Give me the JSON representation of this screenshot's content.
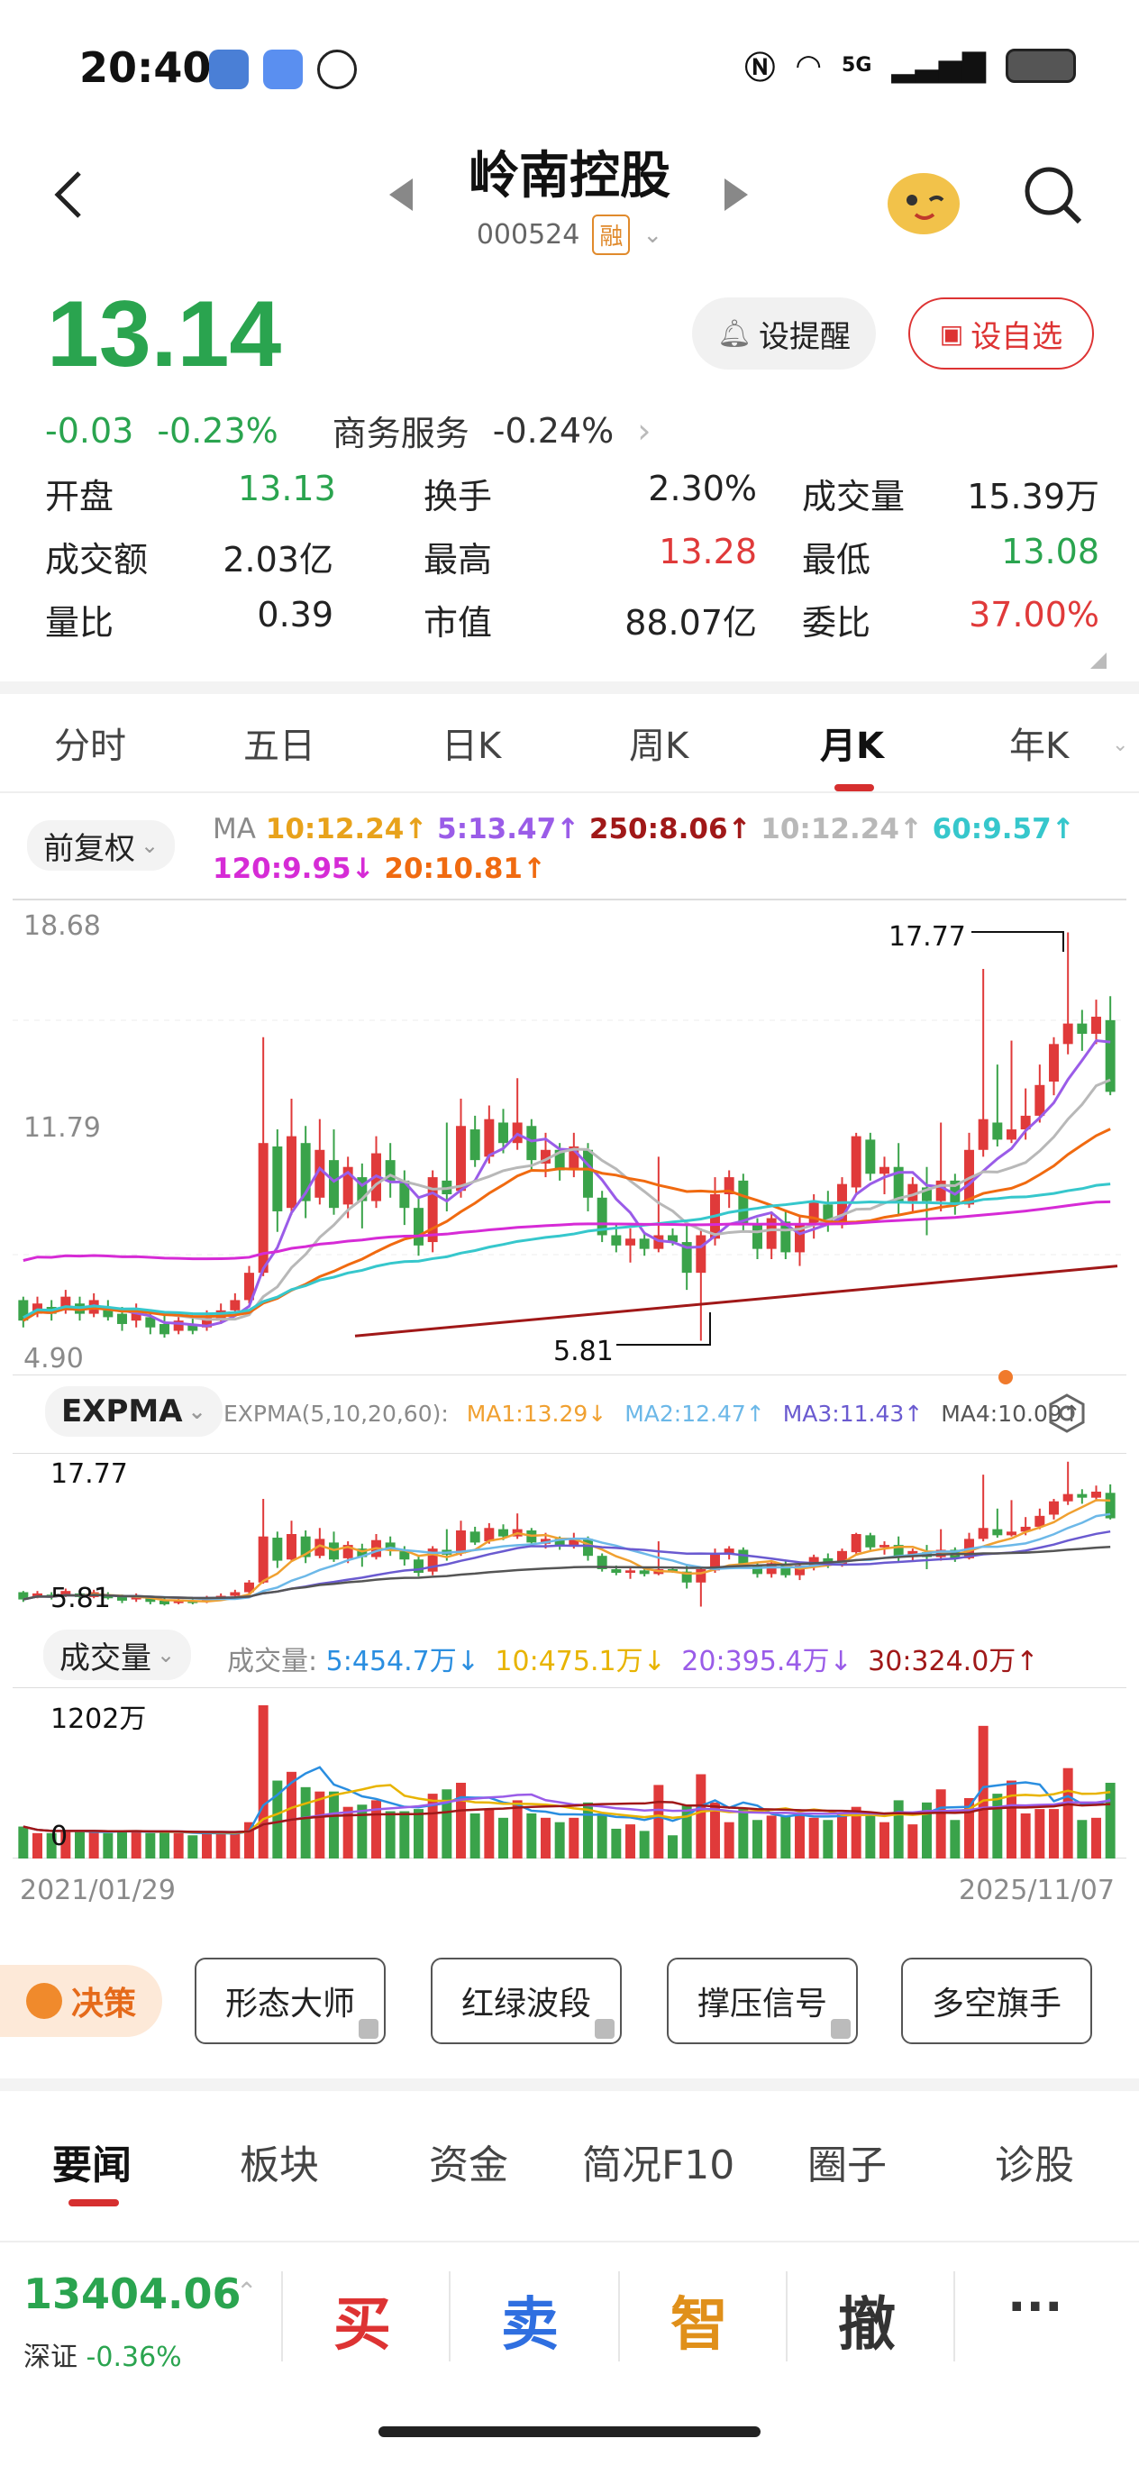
{
  "status_bar": {
    "time": "20:40",
    "network": "5G",
    "icons": [
      "app-icon-1",
      "message-icon",
      "hand-icon",
      "nfc-icon",
      "wifi-icon",
      "signal-icon",
      "battery-icon"
    ]
  },
  "header": {
    "stock_name": "岭南控股",
    "stock_code": "000524",
    "margin_badge": "融"
  },
  "quote": {
    "price": "13.14",
    "change": "-0.03",
    "change_pct": "-0.23%",
    "sector": "商务服务",
    "sector_pct": "-0.24%",
    "remind_label": "设提醒",
    "watch_label": "设自选"
  },
  "stats": [
    {
      "label": "开盘",
      "value": "13.13",
      "color": "green"
    },
    {
      "label": "换手",
      "value": "2.30%",
      "color": "black"
    },
    {
      "label": "成交量",
      "value": "15.39万",
      "color": "black"
    },
    {
      "label": "成交额",
      "value": "2.03亿",
      "color": "black"
    },
    {
      "label": "最高",
      "value": "13.28",
      "color": "red"
    },
    {
      "label": "最低",
      "value": "13.08",
      "color": "green"
    },
    {
      "label": "量比",
      "value": "0.39",
      "color": "black"
    },
    {
      "label": "市值",
      "value": "88.07亿",
      "color": "black"
    },
    {
      "label": "委比",
      "value": "37.00%",
      "color": "red"
    }
  ],
  "period_tabs": [
    "分时",
    "五日",
    "日K",
    "周K",
    "月K",
    "年K"
  ],
  "active_period": "月K",
  "main_chart": {
    "adjust_label": "前复权",
    "ma_label": "MA",
    "ma_items": [
      {
        "text": "10:12.24↑",
        "color": "#e8a21b"
      },
      {
        "text": "5:13.47↑",
        "color": "#9a5ce8"
      },
      {
        "text": "250:8.06↑",
        "color": "#a01818"
      },
      {
        "text": "10:12.24↑",
        "color": "#b8b8b8"
      },
      {
        "text": "60:9.57↑",
        "color": "#36c7cc"
      },
      {
        "text": "120:9.95↓",
        "color": "#d62bd6"
      },
      {
        "text": "20:10.81↑",
        "color": "#f06a10"
      }
    ],
    "y_top": "18.68",
    "y_mid": "11.79",
    "y_bottom": "4.90",
    "high_mark": "17.77",
    "low_mark": "5.81"
  },
  "expma_chart": {
    "name": "EXPMA",
    "params": "EXPMA(5,10,20,60):",
    "items": [
      {
        "text": "MA1:13.29↓",
        "color": "#f0a030"
      },
      {
        "text": "MA2:12.47↑",
        "color": "#6cb8e8"
      },
      {
        "text": "MA3:11.43↑",
        "color": "#6a5ad0"
      },
      {
        "text": "MA4:10.09↑",
        "color": "#555555"
      }
    ],
    "y_top": "17.77",
    "y_bottom": "5.81"
  },
  "volume_chart": {
    "name": "成交量",
    "prefix": "成交量:",
    "items": [
      {
        "text": "5:454.7万↓",
        "color": "#2a8ee0"
      },
      {
        "text": "10:475.1万↓",
        "color": "#e8b400"
      },
      {
        "text": "20:395.4万↓",
        "color": "#9a5ce8"
      },
      {
        "text": "30:324.0万↑",
        "color": "#a01818"
      }
    ],
    "y_top": "1202万",
    "y_bottom": "0",
    "date_start": "2021/01/29",
    "date_end": "2025/11/07"
  },
  "strategy": {
    "badge": "决策",
    "buttons": [
      "形态大师",
      "红绿波段",
      "撑压信号",
      "多空旗手"
    ]
  },
  "news_tabs": [
    "要闻",
    "板块",
    "资金",
    "简况F10",
    "圈子",
    "诊股"
  ],
  "bottom": {
    "index_value": "13404.06",
    "index_name": "深证",
    "index_pct": "-0.36%",
    "buy": "买",
    "sell": "卖",
    "smart": "智",
    "cancel": "撤",
    "more": "···"
  },
  "chart_data": {
    "type": "candlestick",
    "candles": [
      [
        7.0,
        6.4,
        7.1,
        6.2
      ],
      [
        6.6,
        6.9,
        7.1,
        6.5
      ],
      [
        6.8,
        6.6,
        7.0,
        6.4
      ],
      [
        6.7,
        7.1,
        7.3,
        6.6
      ],
      [
        6.9,
        6.6,
        7.1,
        6.4
      ],
      [
        6.6,
        7.0,
        7.2,
        6.5
      ],
      [
        6.8,
        6.5,
        7.0,
        6.4
      ],
      [
        6.6,
        6.3,
        6.8,
        6.1
      ],
      [
        6.4,
        6.7,
        6.9,
        6.2
      ],
      [
        6.5,
        6.2,
        6.6,
        6.0
      ],
      [
        6.3,
        6.0,
        6.6,
        5.9
      ],
      [
        6.1,
        6.4,
        6.6,
        6.0
      ],
      [
        6.3,
        6.1,
        6.5,
        6.0
      ],
      [
        6.2,
        6.5,
        6.7,
        6.1
      ],
      [
        6.4,
        6.7,
        6.9,
        6.3
      ],
      [
        6.7,
        7.0,
        7.2,
        6.6
      ],
      [
        7.0,
        7.8,
        8.0,
        6.9
      ],
      [
        7.8,
        11.6,
        14.7,
        7.7
      ],
      [
        11.5,
        9.6,
        12.0,
        9.0
      ],
      [
        9.7,
        11.8,
        12.9,
        9.5
      ],
      [
        11.6,
        9.9,
        12.1,
        9.4
      ],
      [
        10.0,
        11.4,
        12.3,
        9.8
      ],
      [
        11.1,
        9.7,
        12.0,
        9.5
      ],
      [
        9.8,
        10.9,
        11.2,
        9.4
      ],
      [
        10.6,
        9.9,
        11.0,
        9.1
      ],
      [
        9.9,
        11.3,
        11.8,
        9.7
      ],
      [
        11.1,
        10.5,
        11.6,
        10.0
      ],
      [
        10.5,
        9.7,
        10.8,
        9.2
      ],
      [
        9.7,
        8.6,
        10.0,
        8.3
      ],
      [
        8.7,
        10.6,
        10.8,
        8.4
      ],
      [
        10.5,
        10.1,
        12.2,
        9.6
      ],
      [
        10.2,
        12.1,
        12.9,
        10.0
      ],
      [
        12.0,
        11.1,
        12.4,
        10.9
      ],
      [
        11.2,
        12.3,
        12.7,
        11.0
      ],
      [
        12.2,
        11.6,
        12.6,
        11.3
      ],
      [
        11.6,
        12.2,
        13.5,
        11.4
      ],
      [
        12.1,
        11.1,
        12.3,
        10.8
      ],
      [
        11.0,
        11.4,
        11.9,
        10.6
      ],
      [
        11.4,
        10.8,
        11.6,
        10.5
      ],
      [
        10.8,
        11.5,
        11.9,
        10.6
      ],
      [
        11.4,
        10.0,
        11.6,
        9.6
      ],
      [
        10.0,
        8.9,
        10.2,
        8.7
      ],
      [
        8.9,
        8.6,
        9.2,
        8.4
      ],
      [
        8.6,
        8.8,
        9.1,
        8.1
      ],
      [
        8.8,
        8.5,
        9.0,
        8.3
      ],
      [
        8.5,
        8.9,
        11.2,
        8.4
      ],
      [
        8.9,
        8.7,
        9.1,
        8.6
      ],
      [
        8.7,
        7.8,
        9.2,
        7.3
      ],
      [
        7.8,
        8.9,
        9.1,
        5.81
      ],
      [
        8.8,
        10.1,
        10.6,
        8.6
      ],
      [
        10.1,
        10.6,
        10.8,
        9.7
      ],
      [
        10.5,
        9.2,
        10.7,
        9.0
      ],
      [
        9.2,
        8.5,
        9.4,
        8.2
      ],
      [
        8.5,
        9.4,
        9.6,
        8.2
      ],
      [
        9.3,
        8.4,
        9.6,
        8.2
      ],
      [
        8.4,
        9.2,
        9.5,
        8.0
      ],
      [
        9.2,
        9.9,
        10.1,
        8.8
      ],
      [
        9.8,
        9.2,
        10.2,
        9.0
      ],
      [
        9.2,
        10.4,
        10.6,
        9.1
      ],
      [
        10.3,
        11.8,
        11.9,
        10.1
      ],
      [
        11.7,
        10.7,
        11.9,
        10.5
      ],
      [
        10.7,
        10.9,
        11.2,
        10.1
      ],
      [
        10.9,
        9.9,
        11.6,
        9.5
      ],
      [
        9.9,
        10.4,
        10.6,
        9.6
      ],
      [
        10.3,
        9.9,
        10.9,
        8.9
      ],
      [
        9.9,
        10.5,
        12.2,
        9.6
      ],
      [
        10.5,
        9.8,
        10.7,
        9.5
      ],
      [
        9.8,
        11.4,
        11.9,
        9.7
      ],
      [
        11.4,
        12.3,
        16.7,
        11.2
      ],
      [
        12.2,
        11.7,
        13.9,
        11.5
      ],
      [
        11.7,
        12.0,
        14.6,
        11.6
      ],
      [
        12.0,
        12.4,
        13.2,
        11.7
      ],
      [
        12.4,
        13.3,
        13.9,
        12.2
      ],
      [
        13.4,
        14.5,
        14.7,
        13.0
      ],
      [
        14.5,
        15.1,
        17.77,
        14.2
      ],
      [
        15.1,
        14.8,
        15.5,
        14.3
      ],
      [
        14.8,
        15.3,
        15.8,
        14.5
      ],
      [
        15.2,
        13.1,
        15.9,
        13.0
      ]
    ],
    "ma_lines": [
      "MA5",
      "MA10",
      "MA20",
      "MA60",
      "MA120",
      "MA250"
    ],
    "y_range": [
      4.9,
      18.68
    ],
    "max_label": "17.77",
    "min_label": "5.81",
    "x_range": [
      "2021/01/29",
      "2025/11/07"
    ],
    "volume_max": "1202万"
  }
}
